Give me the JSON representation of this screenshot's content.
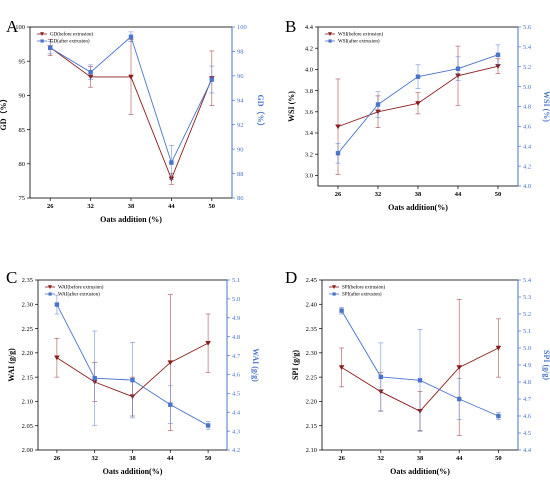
{
  "colors": {
    "before": "#8b1c1c",
    "after": "#4a74c9",
    "axis": "#000000"
  },
  "chart_data": [
    {
      "panel": "A",
      "type": "line",
      "categories": [
        "26",
        "32",
        "38",
        "44",
        "50"
      ],
      "xlabel": "Oats addition (%)",
      "ylabel_left": "GD（%）",
      "ylabel_right": "GD（%）",
      "ylim_left": [
        75,
        100
      ],
      "yticks_left": [
        "75",
        "80",
        "85",
        "90",
        "95",
        "100"
      ],
      "ylim_right": [
        86,
        100
      ],
      "yticks_right": [
        "86",
        "88",
        "90",
        "92",
        "94",
        "96",
        "98",
        "100"
      ],
      "legend_position": "top-left",
      "series": [
        {
          "name": "GD(before extrusion)",
          "axis": "left",
          "marker": "triangle-down",
          "values": [
            97,
            92.7,
            92.7,
            77.8,
            92.5
          ],
          "errors": [
            1.2,
            1.5,
            5.5,
            0.8,
            4.0
          ]
        },
        {
          "name": "GD(after extrusion)",
          "axis": "right",
          "marker": "square",
          "values": [
            98.3,
            96.3,
            99.2,
            88.9,
            95.7
          ],
          "errors": [
            0.5,
            0.6,
            0.4,
            1.4,
            1.1
          ]
        }
      ]
    },
    {
      "panel": "B",
      "type": "line",
      "categories": [
        "26",
        "32",
        "38",
        "44",
        "50"
      ],
      "xlabel": "Oats addition(%)",
      "ylabel_left": "WSI (%)",
      "ylabel_right": "WSI (%)",
      "ylim_left": [
        2.9,
        4.4
      ],
      "yticks_left": [
        "3.0",
        "3.2",
        "3.4",
        "3.6",
        "3.8",
        "4.0",
        "4.2",
        "4.4"
      ],
      "ylim_right": [
        4.0,
        5.6
      ],
      "yticks_right": [
        "4.0",
        "4.2",
        "4.4",
        "4.6",
        "4.8",
        "5.0",
        "5.2",
        "5.4",
        "5.6"
      ],
      "legend_position": "top-left",
      "series": [
        {
          "name": "WSI(before extrusion)",
          "axis": "left",
          "marker": "triangle-down",
          "values": [
            3.46,
            3.6,
            3.68,
            3.94,
            4.03
          ],
          "errors": [
            0.45,
            0.15,
            0.1,
            0.28,
            0.07
          ]
        },
        {
          "name": "WSI(after extrusion)",
          "axis": "right",
          "marker": "square",
          "values": [
            4.33,
            4.82,
            5.1,
            5.18,
            5.32
          ],
          "errors": [
            0.1,
            0.13,
            0.12,
            0.12,
            0.1
          ]
        }
      ]
    },
    {
      "panel": "C",
      "type": "line",
      "categories": [
        "26",
        "32",
        "38",
        "44",
        "50"
      ],
      "xlabel": "Oats addition(%)",
      "ylabel_left": "WAI (g/g)",
      "ylabel_right": "WAI (g/g)",
      "ylim_left": [
        2.0,
        2.35
      ],
      "yticks_left": [
        "2.00",
        "2.05",
        "2.10",
        "2.15",
        "2.20",
        "2.25",
        "2.30",
        "2.35"
      ],
      "ylim_right": [
        4.2,
        5.1
      ],
      "yticks_right": [
        "4.2",
        "4.3",
        "4.4",
        "4.5",
        "4.6",
        "4.7",
        "4.8",
        "4.9",
        "5.0",
        "5.1"
      ],
      "legend_position": "top-left",
      "series": [
        {
          "name": "WAI(before extrusion)",
          "axis": "left",
          "marker": "triangle-down",
          "values": [
            2.19,
            2.14,
            2.11,
            2.18,
            2.22
          ],
          "errors": [
            0.04,
            0.04,
            0.04,
            0.14,
            0.06
          ]
        },
        {
          "name": "WAI(after extrusion)",
          "axis": "right",
          "marker": "square",
          "values": [
            4.97,
            4.58,
            4.57,
            4.44,
            4.33
          ],
          "errors": [
            0.05,
            0.25,
            0.2,
            0.1,
            0.02
          ]
        }
      ]
    },
    {
      "panel": "D",
      "type": "line",
      "categories": [
        "26",
        "32",
        "38",
        "44",
        "50"
      ],
      "xlabel": "Oats addition(%)",
      "ylabel_left": "SPI (g/g)",
      "ylabel_right": "SPI (g/g)",
      "ylim_left": [
        2.1,
        2.45
      ],
      "yticks_left": [
        "2.10",
        "2.15",
        "2.20",
        "2.25",
        "2.30",
        "2.35",
        "2.40",
        "2.45"
      ],
      "ylim_right": [
        4.4,
        5.4
      ],
      "yticks_right": [
        "4.4",
        "4.5",
        "4.6",
        "4.7",
        "4.8",
        "4.9",
        "5.0",
        "5.1",
        "5.2",
        "5.3",
        "5.4"
      ],
      "legend_position": "top-left",
      "series": [
        {
          "name": "SPI(before extrusion)",
          "axis": "left",
          "marker": "triangle-down",
          "values": [
            2.27,
            2.22,
            2.18,
            2.27,
            2.31
          ],
          "errors": [
            0.04,
            0.04,
            0.04,
            0.14,
            0.06
          ]
        },
        {
          "name": "SPI(after extrusion)",
          "axis": "right",
          "marker": "square",
          "values": [
            5.22,
            4.83,
            4.81,
            4.7,
            4.6
          ],
          "errors": [
            0.02,
            0.2,
            0.3,
            0.12,
            0.02
          ]
        }
      ]
    }
  ]
}
